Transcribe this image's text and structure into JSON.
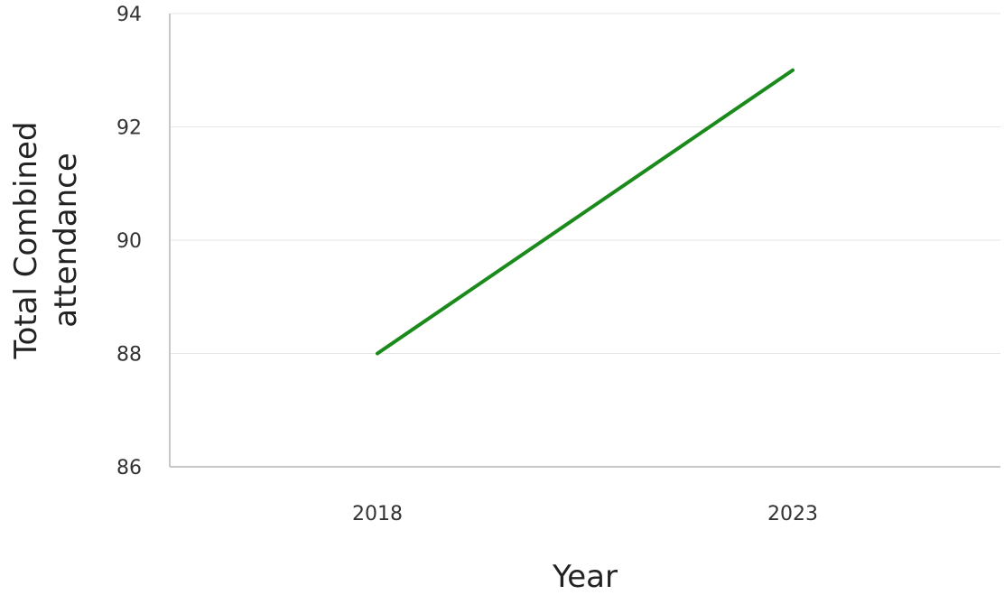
{
  "chart_data": {
    "type": "line",
    "title": "",
    "xlabel": "Year",
    "ylabel_lines": [
      "Total Combined",
      "attendance"
    ],
    "categories": [
      "2018",
      "2023"
    ],
    "series": [
      {
        "values": [
          88,
          93
        ],
        "color": "#1a8a1a"
      }
    ],
    "ylim": [
      86,
      94
    ],
    "yticks": [
      86,
      88,
      90,
      92,
      94
    ],
    "grid": true,
    "legend": "none"
  }
}
